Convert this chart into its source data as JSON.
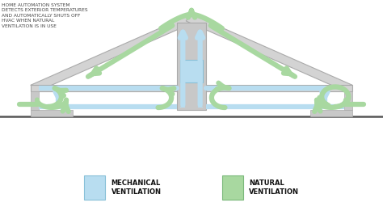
{
  "bg_color": "#ffffff",
  "roof_color": "#d3d3d3",
  "roof_edge_color": "#aaaaaa",
  "mech_color": "#b8ddf0",
  "nat_color": "#a8d8a0",
  "wall_color": "#c8c8c8",
  "ground_color": "#666666",
  "text_color": "#444444",
  "annotation_text": "HOME AUTOMATION SYSTEM\nDETECTS EXTERIOR TEMPERATURES\nAND AUTOMATICALLY SHUTS OFF\nHVAC WHEN NATURAL\nVENTILATION IS IN USE",
  "legend_mech_label": "MECHANICAL\nVENTILATION",
  "legend_nat_label": "NATURAL\nVENTILATION",
  "figsize": [
    4.74,
    2.61
  ],
  "dpi": 100
}
